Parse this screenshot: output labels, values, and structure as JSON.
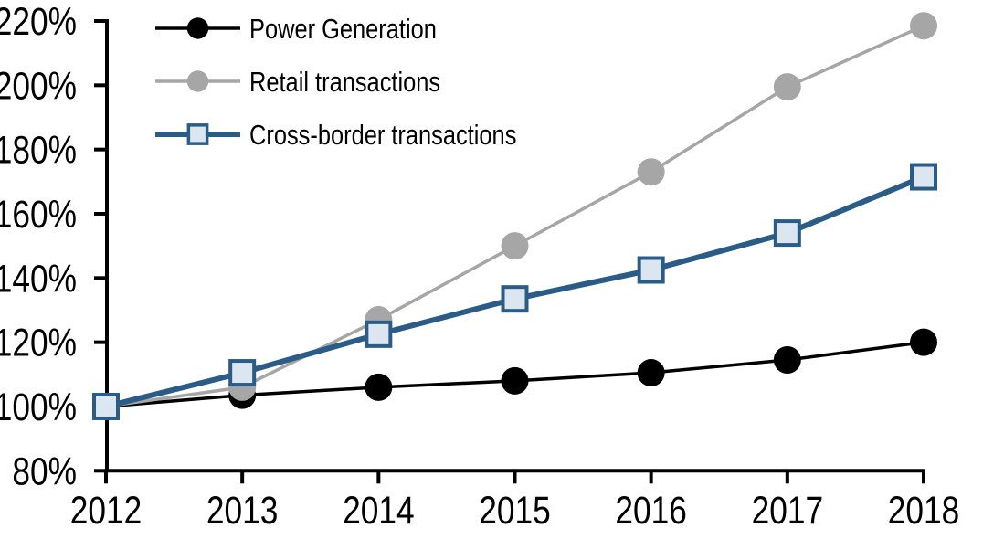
{
  "chart_data": {
    "type": "line",
    "title": "",
    "xlabel": "",
    "ylabel": "",
    "x": [
      2012,
      2013,
      2014,
      2015,
      2016,
      2017,
      2018
    ],
    "xticks": [
      "2012",
      "2013",
      "2014",
      "2015",
      "2016",
      "2017",
      "2018"
    ],
    "yticks": [
      "80%",
      "100%",
      "120%",
      "140%",
      "160%",
      "180%",
      "200%",
      "220%"
    ],
    "ylim": [
      80,
      220
    ],
    "ytick_step": 20,
    "grid": false,
    "legend_position": "top-left",
    "axis_color": "#000000",
    "series": [
      {
        "name": "Power Generation",
        "values": [
          100,
          103.5,
          106,
          108,
          110.5,
          114.5,
          120
        ],
        "color": "#000000",
        "marker": "circle",
        "marker_fill": "#000000",
        "marker_size": 15,
        "line_width": 3.5
      },
      {
        "name": "Retail transactions",
        "values": [
          100,
          106,
          127,
          150,
          173,
          199.5,
          218.5
        ],
        "color": "#A6A6A6",
        "marker": "circle",
        "marker_fill": "#A6A6A6",
        "marker_size": 15,
        "line_width": 3.5
      },
      {
        "name": "Cross-border transactions",
        "values": [
          100,
          110.5,
          122.5,
          133.5,
          142.5,
          154,
          171.5
        ],
        "color": "#2B5C88",
        "marker": "square",
        "marker_fill": "#DCE6F1",
        "marker_size": 13,
        "line_width": 6
      }
    ]
  }
}
